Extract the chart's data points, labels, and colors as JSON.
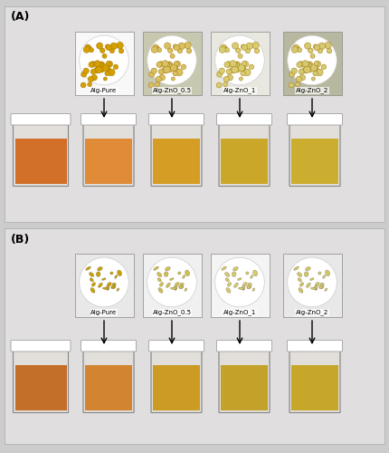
{
  "figure_label_A": "(A)",
  "figure_label_B": "(B)",
  "labels": [
    "Alg-Pure",
    "Alg-ZnO_0.5",
    "Alg-ZnO_1",
    "Alg-ZnO_2"
  ],
  "background_color": "#d8d8d8",
  "panel_bg": "#e8e8e8",
  "jar_colors_A": [
    "#e08020",
    "#d4940a",
    "#c8a010",
    "#c8a818"
  ],
  "jar_colors_B": [
    "#d07818",
    "#c8920a",
    "#c09a10",
    "#c4a010"
  ],
  "bead_colors_A": [
    "#d4a000",
    "#d8c060",
    "#d8cc70",
    "#d4c870"
  ],
  "bead_colors_B": [
    "#c8a000",
    "#d0c050",
    "#d4cc68",
    "#d0c868"
  ],
  "photo_bg_A": [
    "#f8f8f8",
    "#c8c8b0",
    "#e8e8e0",
    "#b8b8a0"
  ],
  "photo_bg_B": [
    "#e8e8e8",
    "#f0f0f0",
    "#f4f4f4",
    "#e8e8e8"
  ],
  "figsize": [
    4.3,
    5.0
  ],
  "dpi": 100
}
